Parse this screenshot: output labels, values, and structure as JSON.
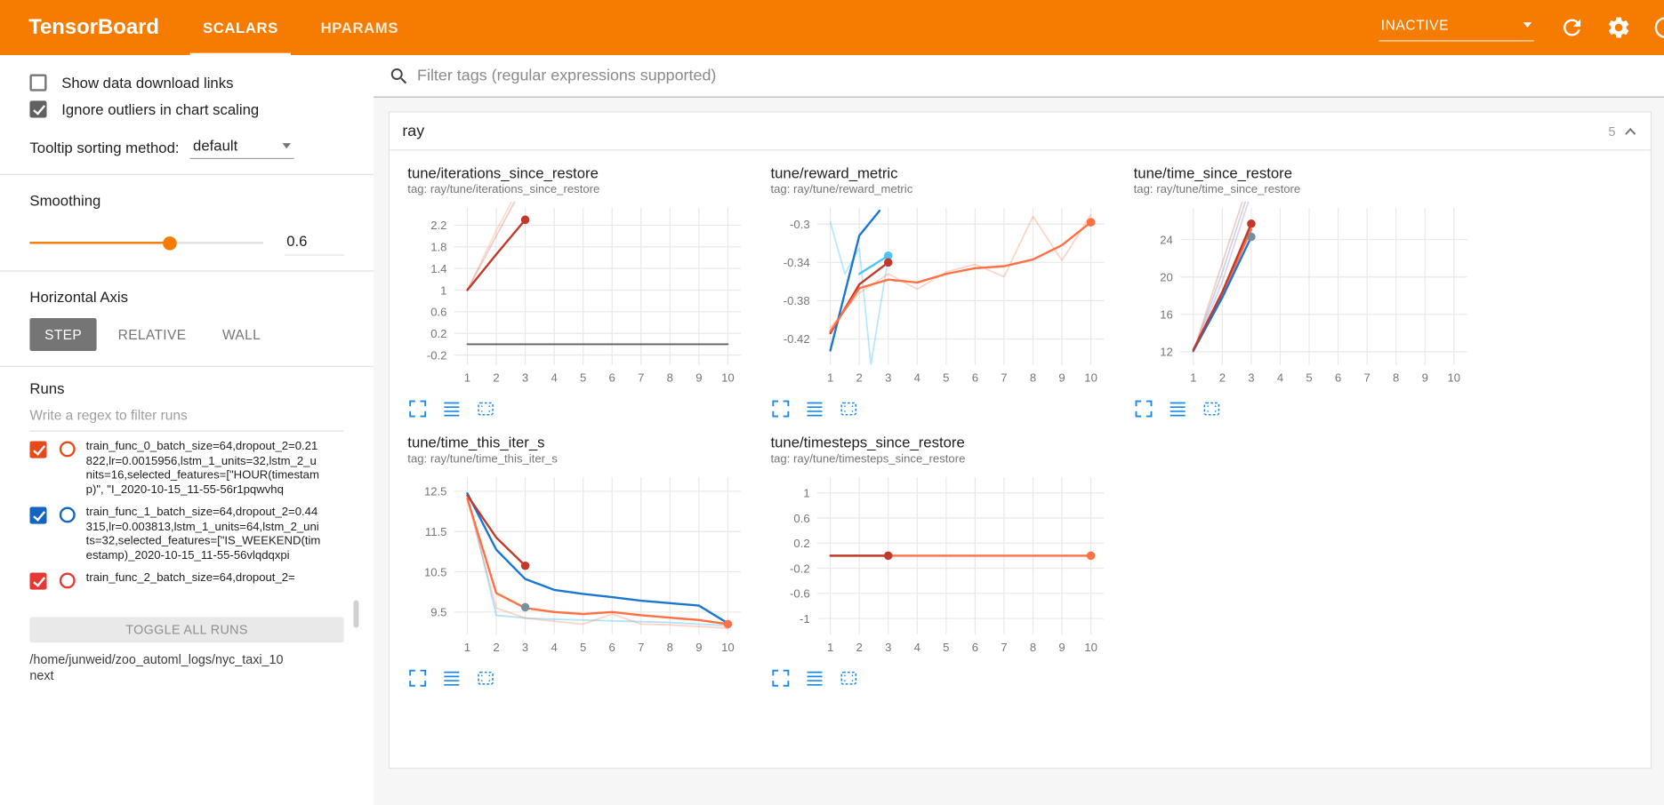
{
  "header": {
    "title": "TensorBoard",
    "tabs": [
      {
        "label": "SCALARS",
        "active": true
      },
      {
        "label": "HPARAMS",
        "active": false
      }
    ],
    "status_dropdown": "INACTIVE"
  },
  "sidebar": {
    "show_download_links": {
      "label": "Show data download links",
      "checked": false
    },
    "ignore_outliers": {
      "label": "Ignore outliers in chart scaling",
      "checked": true
    },
    "tooltip_sorting": {
      "label": "Tooltip sorting method:",
      "value": "default"
    },
    "smoothing": {
      "label": "Smoothing",
      "value": "0.6"
    },
    "horizontal_axis": {
      "label": "Horizontal Axis",
      "options": [
        {
          "label": "STEP",
          "selected": true
        },
        {
          "label": "RELATIVE",
          "selected": false
        },
        {
          "label": "WALL",
          "selected": false
        }
      ]
    },
    "runs": {
      "label": "Runs",
      "filter_placeholder": "Write a regex to filter runs",
      "items": [
        {
          "label": "train_func_0_batch_size=64,dropout_2=0.21822,lr=0.0015956,lstm_1_units=32,lstm_2_units=16,selected_features=[\"HOUR(timestamp)\", \"I_2020-10-15_11-55-56r1pqwvhq",
          "checked": true,
          "color": "#e64a19"
        },
        {
          "label": "train_func_1_batch_size=64,dropout_2=0.44315,lr=0.003813,lstm_1_units=64,lstm_2_units=32,selected_features=[\"IS_WEEKEND(timestamp)_2020-10-15_11-55-56vlqdqxpi",
          "checked": true,
          "color": "#1565c0"
        },
        {
          "label": "train_func_2_batch_size=64,dropout_2=",
          "checked": true,
          "color": "#e53935"
        }
      ],
      "toggle_all_label": "TOGGLE ALL RUNS",
      "log_path": "/home/junweid/zoo_automl_logs/nyc_taxi_10next"
    }
  },
  "main": {
    "filter_placeholder": "Filter tags (regular expressions supported)",
    "section": {
      "title": "ray",
      "count": "5"
    }
  },
  "chart_data": [
    {
      "type": "line",
      "title": "tune/iterations_since_restore",
      "tag": "tag: ray/tune/iterations_since_restore",
      "xlim": [
        0.55,
        10.45
      ],
      "ylim": [
        -0.38,
        2.52
      ],
      "xticks": [
        1,
        2,
        3,
        4,
        5,
        6,
        7,
        8,
        9,
        10
      ],
      "yticks": [
        -0.2,
        0.2,
        0.6,
        1,
        1.4,
        1.8,
        2.2
      ],
      "series": [
        {
          "name": "train_func_0 (raw)",
          "color": "#c0392b",
          "opacity": 0.25,
          "width": 1.5,
          "points": [
            [
              1,
              1
            ],
            [
              2,
              2
            ],
            [
              3,
              3
            ]
          ]
        },
        {
          "name": "train_func_2 (raw)",
          "color": "#ff7043",
          "opacity": 0.25,
          "width": 1.5,
          "points": [
            [
              1,
              1
            ],
            [
              2,
              2.1
            ],
            [
              3,
              3.1
            ]
          ]
        },
        {
          "name": "flat run",
          "color": "#616161",
          "opacity": 1,
          "width": 1.5,
          "points": [
            [
              1,
              0
            ],
            [
              10,
              0
            ]
          ]
        },
        {
          "name": "train_func_0",
          "color": "#c0392b",
          "opacity": 1,
          "width": 2,
          "points": [
            [
              1,
              1
            ],
            [
              2,
              1.66
            ],
            [
              3,
              2.3
            ]
          ],
          "endDot": true
        }
      ]
    },
    {
      "type": "line",
      "title": "tune/reward_metric",
      "tag": "tag: ray/tune/reward_metric",
      "xlim": [
        0.55,
        10.45
      ],
      "ylim": [
        -0.447,
        -0.283
      ],
      "xticks": [
        1,
        2,
        3,
        4,
        5,
        6,
        7,
        8,
        9,
        10
      ],
      "yticks": [
        -0.42,
        -0.38,
        -0.34,
        -0.3
      ],
      "series": [
        {
          "name": "light blue (raw)",
          "color": "#4fc3f7",
          "opacity": 0.4,
          "width": 1.5,
          "points": [
            [
              1,
              -0.298
            ],
            [
              1.5,
              -0.352
            ],
            [
              2,
              -0.325
            ],
            [
              2.4,
              -0.447
            ],
            [
              3,
              -0.335
            ]
          ]
        },
        {
          "name": "orange (raw)",
          "color": "#ff7043",
          "opacity": 0.3,
          "width": 1.5,
          "points": [
            [
              1,
              -0.408
            ],
            [
              2,
              -0.372
            ],
            [
              3,
              -0.352
            ],
            [
              4,
              -0.368
            ],
            [
              5,
              -0.35
            ],
            [
              6,
              -0.342
            ],
            [
              7,
              -0.355
            ],
            [
              8,
              -0.292
            ],
            [
              9,
              -0.338
            ],
            [
              10,
              -0.29
            ]
          ]
        },
        {
          "name": "blue",
          "color": "#1976d2",
          "opacity": 1,
          "width": 2,
          "points": [
            [
              1,
              -0.432
            ],
            [
              2,
              -0.312
            ],
            [
              2.7,
              -0.286
            ]
          ]
        },
        {
          "name": "cyan",
          "color": "#4fc3f7",
          "opacity": 1,
          "width": 2,
          "points": [
            [
              2,
              -0.352
            ],
            [
              3,
              -0.333
            ]
          ],
          "endDot": true
        },
        {
          "name": "dark red",
          "color": "#c0392b",
          "opacity": 1,
          "width": 2,
          "points": [
            [
              1,
              -0.414
            ],
            [
              2,
              -0.363
            ],
            [
              3,
              -0.34
            ]
          ],
          "endDot": true
        },
        {
          "name": "orange",
          "color": "#ff7043",
          "opacity": 1,
          "width": 2,
          "points": [
            [
              1,
              -0.412
            ],
            [
              2,
              -0.367
            ],
            [
              3,
              -0.358
            ],
            [
              4,
              -0.361
            ],
            [
              5,
              -0.352
            ],
            [
              6,
              -0.346
            ],
            [
              7,
              -0.344
            ],
            [
              8,
              -0.337
            ],
            [
              9,
              -0.322
            ],
            [
              10,
              -0.298
            ]
          ],
          "endDot": true
        }
      ]
    },
    {
      "type": "line",
      "title": "tune/time_since_restore",
      "tag": "tag: ray/tune/time_since_restore",
      "xlim": [
        0.55,
        10.45
      ],
      "ylim": [
        10.6,
        27.4
      ],
      "xticks": [
        1,
        2,
        3,
        4,
        5,
        6,
        7,
        8,
        9,
        10
      ],
      "yticks": [
        12,
        16,
        20,
        24
      ],
      "series": [
        {
          "name": "gray (raw)",
          "color": "#90a4ae",
          "opacity": 0.45,
          "width": 1.5,
          "points": [
            [
              1,
              12
            ],
            [
              2,
              20.5
            ],
            [
              3,
              30
            ]
          ]
        },
        {
          "name": "lavender (raw)",
          "color": "#b39ddb",
          "opacity": 0.45,
          "width": 1.5,
          "points": [
            [
              1,
              12
            ],
            [
              2,
              19.5
            ],
            [
              3,
              29
            ]
          ]
        },
        {
          "name": "red (raw)",
          "color": "#c0392b",
          "opacity": 0.25,
          "width": 1.5,
          "points": [
            [
              1,
              12
            ],
            [
              2,
              21.5
            ],
            [
              3,
              31
            ]
          ]
        },
        {
          "name": "orange",
          "color": "#ff7043",
          "opacity": 1,
          "width": 2,
          "points": [
            [
              1,
              12.2
            ],
            [
              2,
              18.1
            ],
            [
              3,
              25.1
            ]
          ]
        },
        {
          "name": "blue",
          "color": "#1976d2",
          "opacity": 1,
          "width": 2,
          "points": [
            [
              1,
              12.1
            ],
            [
              2,
              17.8
            ],
            [
              3,
              24.3
            ]
          ],
          "endDot": true,
          "dotColor": "#78909c"
        },
        {
          "name": "dark red",
          "color": "#c0392b",
          "opacity": 1,
          "width": 2,
          "points": [
            [
              1,
              12.2
            ],
            [
              2,
              18.4
            ],
            [
              3,
              25.7
            ]
          ],
          "endDot": true
        }
      ]
    },
    {
      "type": "line",
      "title": "tune/time_this_iter_s",
      "tag": "tag: ray/tune/time_this_iter_s",
      "xlim": [
        0.55,
        10.45
      ],
      "ylim": [
        8.95,
        12.85
      ],
      "xticks": [
        1,
        2,
        3,
        4,
        5,
        6,
        7,
        8,
        9,
        10
      ],
      "yticks": [
        9.5,
        10.5,
        11.5,
        12.5
      ],
      "series": [
        {
          "name": "light blue (raw)",
          "color": "#4fc3f7",
          "opacity": 0.45,
          "width": 1.5,
          "points": [
            [
              1,
              12.45
            ],
            [
              2,
              9.42
            ],
            [
              3,
              9.35
            ],
            [
              4,
              9.32
            ],
            [
              5,
              9.3
            ],
            [
              6,
              9.28
            ],
            [
              7,
              9.26
            ],
            [
              8,
              9.24
            ],
            [
              9,
              9.2
            ],
            [
              10,
              9.16
            ]
          ]
        },
        {
          "name": "orange (raw)",
          "color": "#ff7043",
          "opacity": 0.3,
          "width": 1.5,
          "points": [
            [
              1,
              12.3
            ],
            [
              2,
              9.6
            ],
            [
              3,
              9.35
            ],
            [
              4,
              9.27
            ],
            [
              5,
              9.2
            ],
            [
              6,
              9.45
            ],
            [
              7,
              9.2
            ],
            [
              8,
              9.18
            ],
            [
              9,
              9.14
            ],
            [
              10,
              9.1
            ]
          ]
        },
        {
          "name": "blue",
          "color": "#1976d2",
          "opacity": 1,
          "width": 2,
          "points": [
            [
              1,
              12.45
            ],
            [
              2,
              11.05
            ],
            [
              3,
              10.32
            ],
            [
              4,
              10.05
            ],
            [
              5,
              9.95
            ],
            [
              6,
              9.87
            ],
            [
              7,
              9.78
            ],
            [
              8,
              9.72
            ],
            [
              9,
              9.66
            ],
            [
              10,
              9.22
            ]
          ]
        },
        {
          "name": "dark red",
          "color": "#c0392b",
          "opacity": 1,
          "width": 2,
          "points": [
            [
              1,
              12.4
            ],
            [
              2,
              11.35
            ],
            [
              3,
              10.65
            ]
          ],
          "endDot": true
        },
        {
          "name": "orange",
          "color": "#ff7043",
          "opacity": 1,
          "width": 2,
          "points": [
            [
              1,
              12.32
            ],
            [
              2,
              9.97
            ],
            [
              3,
              9.6
            ],
            [
              4,
              9.5
            ],
            [
              5,
              9.45
            ],
            [
              6,
              9.5
            ],
            [
              7,
              9.42
            ],
            [
              8,
              9.36
            ],
            [
              9,
              9.3
            ],
            [
              10,
              9.2
            ]
          ],
          "endDot": true
        },
        {
          "name": "slate point",
          "color": "#78909c",
          "opacity": 1,
          "width": 2,
          "points": [
            [
              3,
              9.62
            ],
            [
              3,
              9.62
            ]
          ],
          "endDot": true
        }
      ]
    },
    {
      "type": "line",
      "title": "tune/timesteps_since_restore",
      "tag": "tag: ray/tune/timesteps_since_restore",
      "xlim": [
        0.55,
        10.45
      ],
      "ylim": [
        -1.25,
        1.25
      ],
      "xticks": [
        1,
        2,
        3,
        4,
        5,
        6,
        7,
        8,
        9,
        10
      ],
      "yticks": [
        -1,
        -0.6,
        -0.2,
        0.2,
        0.6,
        1
      ],
      "series": [
        {
          "name": "gray",
          "color": "#9e9e9e",
          "opacity": 0.8,
          "width": 1.5,
          "points": [
            [
              1,
              0
            ],
            [
              10,
              0
            ]
          ]
        },
        {
          "name": "orange",
          "color": "#ff7043",
          "opacity": 1,
          "width": 2,
          "points": [
            [
              1,
              0
            ],
            [
              10,
              0
            ]
          ],
          "endDot": true
        },
        {
          "name": "dark red",
          "color": "#c0392b",
          "opacity": 1,
          "width": 2,
          "points": [
            [
              1,
              0
            ],
            [
              3,
              0
            ]
          ],
          "endDot": true
        }
      ]
    }
  ]
}
